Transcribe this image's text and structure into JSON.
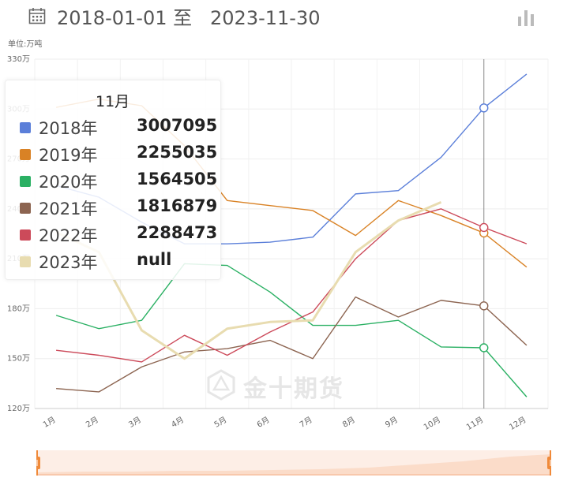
{
  "header": {
    "start_date": "2018-01-01",
    "separator": "至",
    "end_date": "2023-11-30",
    "calendar_icon": "calendar-icon",
    "chart_toggle_icon": "bar-chart-icon"
  },
  "unit_label": "单位:万吨",
  "watermark": "金十期货",
  "colors": {
    "2018年": "#5b7fd9",
    "2019年": "#d98225",
    "2020年": "#2ab063",
    "2021年": "#8c6450",
    "2022年": "#cc4a5a",
    "2023年": "#e8dcb0"
  },
  "tooltip": {
    "title": "11月",
    "rows": [
      {
        "name": "2018年",
        "value": "3007095"
      },
      {
        "name": "2019年",
        "value": "2255035"
      },
      {
        "name": "2020年",
        "value": "1564505"
      },
      {
        "name": "2021年",
        "value": "1816879"
      },
      {
        "name": "2022年",
        "value": "2288473"
      },
      {
        "name": "2023年",
        "value": "null"
      }
    ]
  },
  "chart_data": {
    "type": "line",
    "categories": [
      "1月",
      "2月",
      "3月",
      "4月",
      "5月",
      "6月",
      "7月",
      "8月",
      "9月",
      "10月",
      "11月",
      "12月"
    ],
    "ylim": [
      120,
      330
    ],
    "yticks": [
      {
        "value": 120,
        "label": "120万"
      },
      {
        "value": 150,
        "label": "150万"
      },
      {
        "value": 180,
        "label": "180万"
      },
      {
        "value": 210,
        "label": "210万"
      },
      {
        "value": 240,
        "label": "240万"
      },
      {
        "value": 270,
        "label": "270万"
      },
      {
        "value": 300,
        "label": "300万"
      },
      {
        "value": 330,
        "label": "330万"
      }
    ],
    "grid": true,
    "hover_category": "11月",
    "series": [
      {
        "name": "2018年",
        "values": [
          254,
          247,
          232,
          219,
          219,
          220,
          223,
          249,
          251,
          271,
          300.7,
          321
        ]
      },
      {
        "name": "2019年",
        "values": [
          301,
          306,
          302,
          278,
          245,
          242,
          239,
          224,
          245,
          236,
          225.5,
          205
        ]
      },
      {
        "name": "2020年",
        "values": [
          176,
          168,
          173,
          207,
          206,
          190,
          170,
          170,
          173,
          157,
          156.5,
          127
        ]
      },
      {
        "name": "2021年",
        "values": [
          132,
          130,
          145,
          154,
          156,
          161,
          150,
          187,
          175,
          185,
          181.7,
          158
        ]
      },
      {
        "name": "2022年",
        "values": [
          155,
          152,
          148,
          164,
          152,
          166,
          178,
          210,
          233,
          240,
          228.8,
          219
        ]
      },
      {
        "name": "2023年",
        "values": [
          226,
          214,
          167,
          150,
          168,
          172,
          173,
          214,
          233,
          244,
          null,
          null
        ]
      }
    ]
  }
}
